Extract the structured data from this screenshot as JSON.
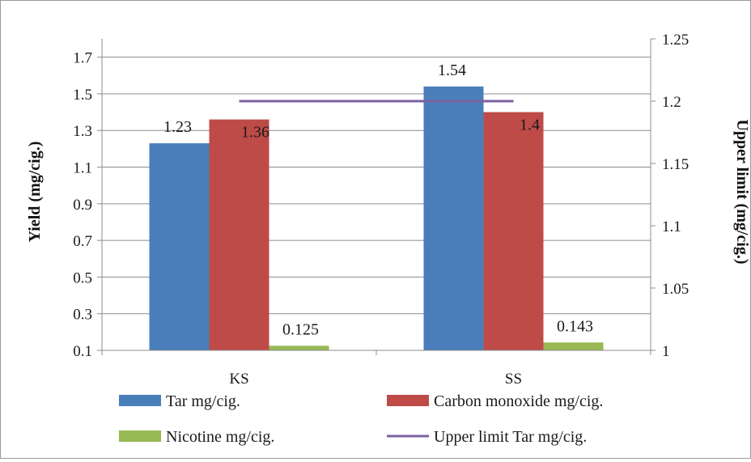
{
  "chart_data": {
    "type": "bar",
    "categories": [
      "KS",
      "SS"
    ],
    "series": [
      {
        "name": "Tar mg/cig.",
        "values": [
          1.23,
          1.54
        ],
        "color": "#4a7ebb",
        "labels": [
          "1.23",
          "1.54"
        ],
        "axis": "left"
      },
      {
        "name": "Carbon monoxide mg/cig.",
        "values": [
          1.36,
          1.4
        ],
        "color": "#be4b48",
        "labels": [
          "1.36",
          "1.4"
        ],
        "axis": "left"
      },
      {
        "name": "Nicotine mg/cig.",
        "values": [
          0.125,
          0.143
        ],
        "color": "#98b954",
        "labels": [
          "0.125",
          "0.143"
        ],
        "axis": "left"
      },
      {
        "name": "Upper limit Tar mg/cig.",
        "type": "line",
        "values": [
          1.2,
          1.2
        ],
        "color": "#7d60a0",
        "axis": "right"
      }
    ],
    "ylabel": "Yield (mg/cig.)",
    "y2label": "Upper limit (mg/cig.)",
    "ylim": [
      0.1,
      1.8
    ],
    "y2lim": [
      1,
      1.25
    ],
    "yticks": [
      "0.1",
      "0.3",
      "0.5",
      "0.7",
      "0.9",
      "1.1",
      "1.3",
      "1.5",
      "1.7"
    ],
    "y2ticks": [
      "1",
      "1.05",
      "1.1",
      "1.15",
      "1.2",
      "1.25"
    ],
    "grid": true,
    "legend_position": "bottom"
  }
}
